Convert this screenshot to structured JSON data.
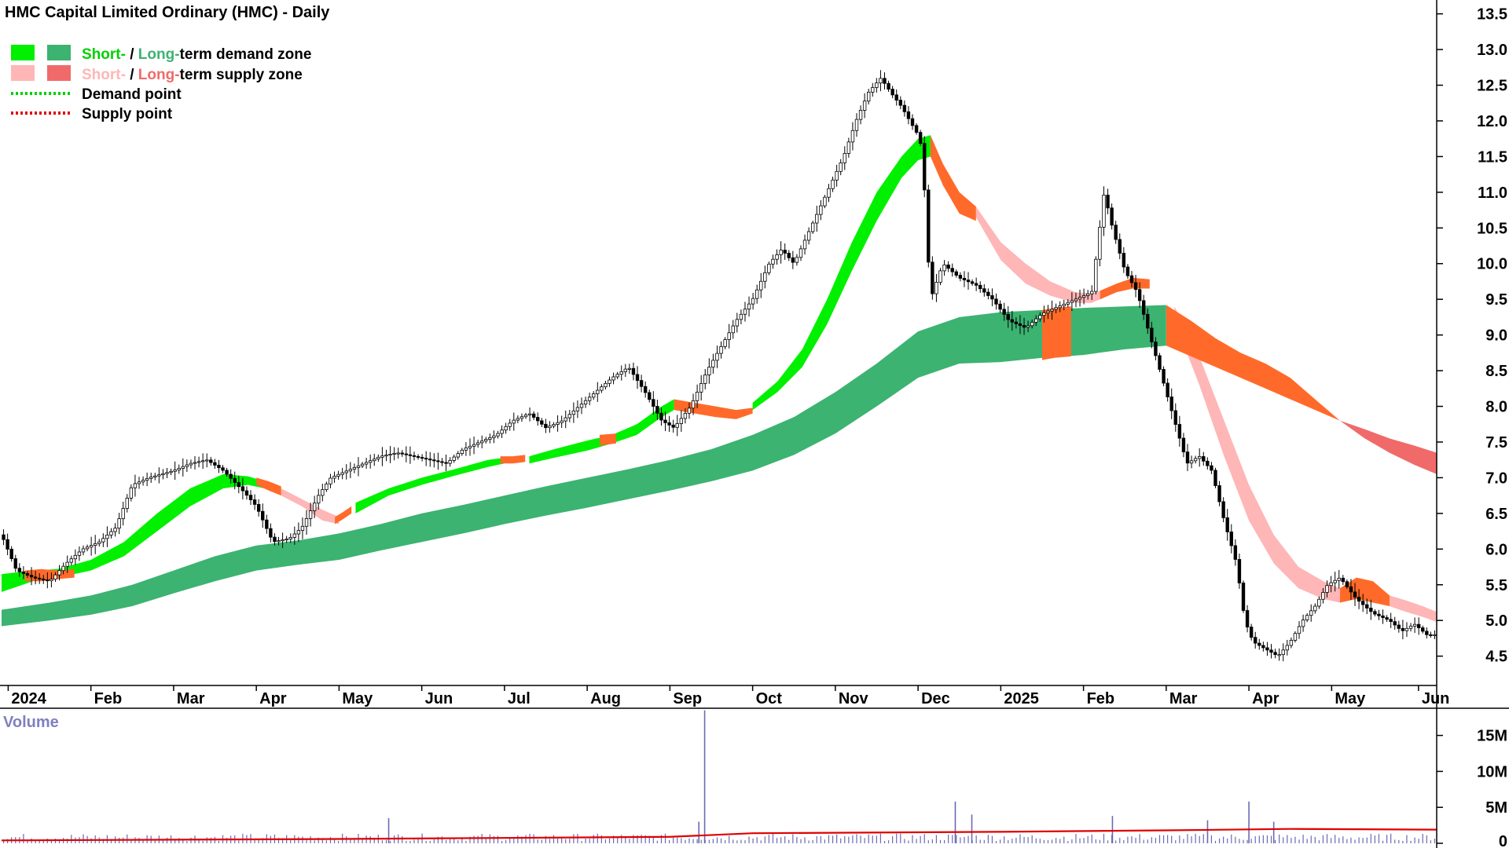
{
  "title": "HMC Capital Limited Ordinary (HMC) - Daily",
  "legend": {
    "demand_zone": {
      "short": "Short-",
      "sep": " / ",
      "long": "Long-",
      "rest": "term demand zone"
    },
    "supply_zone": {
      "short": "Short-",
      "sep": " / ",
      "long": "Long-",
      "rest": "term supply zone"
    },
    "demand_point": "Demand point",
    "supply_point": "Supply point"
  },
  "volume_label": "Volume",
  "colors": {
    "short_demand": "#00f000",
    "long_demand": "#3cb371",
    "short_supply": "#ffb6b6",
    "long_supply": "#f06a6a",
    "overlap": "#ff6a2a",
    "volume_bar": "#6a6ab4",
    "volume_ma": "#e00000",
    "demand_point": "#00d000",
    "supply_point": "#e00000"
  },
  "chart_data": {
    "type": "line",
    "y_axis": {
      "range": [
        4.1,
        13.65
      ],
      "ticks": [
        13.5,
        13.0,
        12.5,
        12.0,
        11.5,
        11.0,
        10.5,
        10.0,
        9.5,
        9.0,
        8.5,
        8.0,
        7.5,
        7.0,
        6.5,
        6.0,
        5.5,
        5.0,
        4.5
      ],
      "tick_labels": [
        "13.5",
        "13.0",
        "12.5",
        "12.0",
        "11.5",
        "11.0",
        "10.5",
        "10.0",
        "9.5",
        "9.0",
        "8.5",
        "8.0",
        "7.5",
        "7.0",
        "6.5",
        "6.0",
        "5.5",
        "5.0",
        "4.5"
      ]
    },
    "x_axis": {
      "labels": [
        "2024",
        "Feb",
        "Mar",
        "Apr",
        "May",
        "Jun",
        "Jul",
        "Aug",
        "Sep",
        "Oct",
        "Nov",
        "Dec",
        "2025",
        "Feb",
        "Mar",
        "Apr",
        "May",
        "Jun"
      ],
      "positions": [
        0,
        1,
        2,
        3,
        4,
        5,
        6,
        7,
        8,
        9,
        10,
        11,
        12,
        13,
        14,
        15,
        16,
        17.05
      ],
      "range": [
        -0.08,
        17.27
      ]
    },
    "price": {
      "x": [
        -0.08,
        0.1,
        0.3,
        0.5,
        0.7,
        0.9,
        1.1,
        1.3,
        1.5,
        1.7,
        1.85,
        2.0,
        2.2,
        2.4,
        2.6,
        2.85,
        3.0,
        3.2,
        3.4,
        3.55,
        3.75,
        3.9,
        4.1,
        4.3,
        4.5,
        4.7,
        4.9,
        5.1,
        5.3,
        5.5,
        5.7,
        5.9,
        6.1,
        6.3,
        6.5,
        6.7,
        6.9,
        7.1,
        7.3,
        7.5,
        7.7,
        7.9,
        8.05,
        8.25,
        8.45,
        8.6,
        8.8,
        9.0,
        9.2,
        9.35,
        9.5,
        9.7,
        9.9,
        10.1,
        10.25,
        10.4,
        10.55,
        10.7,
        10.8,
        10.9,
        11.0,
        11.05,
        11.15,
        11.3,
        11.5,
        11.7,
        11.9,
        12.1,
        12.3,
        12.5,
        12.7,
        12.9,
        13.1,
        13.25,
        13.35,
        13.5,
        13.65,
        13.8,
        13.95,
        14.1,
        14.25,
        14.4,
        14.55,
        14.7,
        14.85,
        14.95,
        15.05,
        15.2,
        15.35,
        15.5,
        15.65,
        15.8,
        15.95,
        16.1,
        16.3,
        16.5,
        16.7,
        16.85,
        17.0,
        17.15,
        17.27
      ],
      "close": [
        6.2,
        5.7,
        5.6,
        5.55,
        5.8,
        6.0,
        6.1,
        6.3,
        6.9,
        7.0,
        7.05,
        7.1,
        7.2,
        7.25,
        7.1,
        6.8,
        6.6,
        6.1,
        6.15,
        6.3,
        6.75,
        7.0,
        7.1,
        7.2,
        7.3,
        7.35,
        7.3,
        7.25,
        7.2,
        7.4,
        7.5,
        7.6,
        7.8,
        7.9,
        7.7,
        7.8,
        8.0,
        8.2,
        8.4,
        8.55,
        8.2,
        7.8,
        7.7,
        8.0,
        8.5,
        8.8,
        9.2,
        9.5,
        10.0,
        10.2,
        10.0,
        10.5,
        11.0,
        11.5,
        12.0,
        12.4,
        12.6,
        12.35,
        12.2,
        12.0,
        11.8,
        11.6,
        9.5,
        10.0,
        9.8,
        9.7,
        9.5,
        9.2,
        9.1,
        9.3,
        9.4,
        9.5,
        9.6,
        11.0,
        10.5,
        9.9,
        9.6,
        9.0,
        8.4,
        7.8,
        7.2,
        7.3,
        7.1,
        6.4,
        5.8,
        5.0,
        4.7,
        4.6,
        4.5,
        4.7,
        5.0,
        5.2,
        5.5,
        5.6,
        5.3,
        5.1,
        5.0,
        4.85,
        4.95,
        4.8,
        4.8
      ]
    },
    "short_demand_zone": {
      "segments": [
        {
          "x": [
            -0.08,
            0.3,
            0.6,
            1.0,
            1.4,
            1.8,
            2.2,
            2.6,
            2.9,
            3.1
          ],
          "upper": [
            5.65,
            5.7,
            5.72,
            5.85,
            6.1,
            6.5,
            6.85,
            7.05,
            7.02,
            6.95
          ],
          "lower": [
            5.4,
            5.55,
            5.6,
            5.7,
            5.9,
            6.25,
            6.6,
            6.85,
            6.9,
            6.85
          ]
        },
        {
          "x": [
            4.2,
            4.6,
            5.0,
            5.4,
            5.8,
            6.0
          ],
          "upper": [
            6.65,
            6.85,
            7.0,
            7.12,
            7.25,
            7.28
          ],
          "lower": [
            6.5,
            6.75,
            6.9,
            7.03,
            7.15,
            7.2
          ]
        },
        {
          "x": [
            6.3,
            6.6,
            7.0,
            7.3,
            7.6,
            7.9,
            8.05
          ],
          "upper": [
            7.3,
            7.4,
            7.52,
            7.6,
            7.75,
            8.0,
            8.1
          ],
          "lower": [
            7.2,
            7.28,
            7.38,
            7.48,
            7.6,
            7.85,
            7.95
          ]
        },
        {
          "x": [
            9.0,
            9.3,
            9.6,
            9.9,
            10.2,
            10.5,
            10.8,
            11.0,
            11.15
          ],
          "upper": [
            8.05,
            8.35,
            8.8,
            9.5,
            10.3,
            11.0,
            11.5,
            11.75,
            11.8
          ],
          "lower": [
            7.95,
            8.2,
            8.55,
            9.15,
            9.9,
            10.6,
            11.2,
            11.45,
            11.5
          ]
        }
      ]
    },
    "long_demand_zone": {
      "x": [
        -0.08,
        0.5,
        1.0,
        1.5,
        2.0,
        2.5,
        3.0,
        3.5,
        4.0,
        4.5,
        5.0,
        5.5,
        6.0,
        6.5,
        7.0,
        7.5,
        8.0,
        8.5,
        9.0,
        9.5,
        10.0,
        10.5,
        11.0,
        11.5,
        12.0,
        12.5,
        13.0,
        13.5,
        14.0
      ],
      "upper": [
        5.15,
        5.25,
        5.35,
        5.5,
        5.7,
        5.9,
        6.05,
        6.12,
        6.22,
        6.35,
        6.5,
        6.62,
        6.75,
        6.88,
        7.0,
        7.12,
        7.25,
        7.4,
        7.6,
        7.85,
        8.2,
        8.6,
        9.05,
        9.25,
        9.32,
        9.35,
        9.38,
        9.4,
        9.42
      ],
      "lower": [
        4.92,
        5.0,
        5.08,
        5.2,
        5.38,
        5.55,
        5.7,
        5.78,
        5.85,
        5.98,
        6.1,
        6.22,
        6.35,
        6.47,
        6.58,
        6.7,
        6.82,
        6.95,
        7.1,
        7.32,
        7.62,
        8.0,
        8.4,
        8.6,
        8.62,
        8.68,
        8.72,
        8.8,
        8.85
      ]
    },
    "short_supply_zone": {
      "segments": [
        {
          "x": [
            3.3,
            3.55,
            3.8,
            4.0
          ],
          "upper": [
            6.85,
            6.7,
            6.55,
            6.45
          ],
          "lower": [
            6.75,
            6.6,
            6.4,
            6.35
          ]
        },
        {
          "x": [
            11.7,
            12.0,
            12.3,
            12.6,
            12.9,
            13.1,
            13.2
          ],
          "upper": [
            10.8,
            10.3,
            10.0,
            9.75,
            9.6,
            9.58,
            9.62
          ],
          "lower": [
            10.65,
            10.05,
            9.72,
            9.55,
            9.45,
            9.45,
            9.5
          ]
        },
        {
          "x": [
            14.1,
            14.4,
            14.7,
            15.0,
            15.3,
            15.6,
            15.9,
            16.1
          ],
          "upper": [
            9.4,
            8.7,
            7.8,
            6.9,
            6.2,
            5.75,
            5.55,
            5.45
          ],
          "lower": [
            9.2,
            8.3,
            7.3,
            6.4,
            5.8,
            5.45,
            5.3,
            5.25
          ]
        },
        {
          "x": [
            16.7,
            16.9,
            17.1,
            17.27
          ],
          "upper": [
            5.35,
            5.28,
            5.2,
            5.12
          ],
          "lower": [
            5.2,
            5.12,
            5.05,
            4.98
          ]
        }
      ]
    },
    "long_supply_zone": {
      "x": [
        16.1,
        16.4,
        16.7,
        17.0,
        17.27
      ],
      "upper": [
        7.8,
        7.68,
        7.55,
        7.45,
        7.35
      ],
      "lower": [
        7.8,
        7.55,
        7.35,
        7.18,
        7.05
      ]
    },
    "overlap_zone": {
      "segments": [
        {
          "x": [
            0.2,
            0.4,
            0.6,
            0.8
          ],
          "upper": [
            5.7,
            5.72,
            5.7,
            5.72
          ],
          "lower": [
            5.55,
            5.55,
            5.58,
            5.6
          ]
        },
        {
          "x": [
            3.0,
            3.15,
            3.3
          ],
          "upper": [
            7.0,
            6.95,
            6.88
          ],
          "lower": [
            6.9,
            6.82,
            6.75
          ]
        },
        {
          "x": [
            3.95,
            4.05,
            4.15
          ],
          "upper": [
            6.45,
            6.52,
            6.6
          ],
          "lower": [
            6.35,
            6.42,
            6.5
          ]
        },
        {
          "x": [
            5.95,
            6.1,
            6.25
          ],
          "upper": [
            7.3,
            7.3,
            7.32
          ],
          "lower": [
            7.2,
            7.2,
            7.22
          ]
        },
        {
          "x": [
            7.15,
            7.35
          ],
          "upper": [
            7.6,
            7.62
          ],
          "lower": [
            7.45,
            7.48
          ]
        },
        {
          "x": [
            8.05,
            8.3,
            8.55,
            8.8,
            9.0
          ],
          "upper": [
            8.1,
            8.05,
            8.0,
            7.95,
            7.98
          ],
          "lower": [
            7.95,
            7.9,
            7.85,
            7.82,
            7.9
          ]
        },
        {
          "x": [
            11.15,
            11.3,
            11.5,
            11.7
          ],
          "upper": [
            11.8,
            11.4,
            11.0,
            10.8
          ],
          "lower": [
            11.5,
            11.1,
            10.7,
            10.6
          ]
        },
        {
          "x": [
            12.5,
            12.65,
            12.85
          ],
          "upper": [
            9.35,
            9.38,
            9.4
          ],
          "lower": [
            8.65,
            8.68,
            8.7
          ]
        },
        {
          "x": [
            13.2,
            13.4,
            13.6,
            13.8
          ],
          "upper": [
            9.62,
            9.72,
            9.8,
            9.78
          ],
          "lower": [
            9.5,
            9.6,
            9.65,
            9.65
          ]
        },
        {
          "x": [
            14.0,
            14.3,
            14.6,
            14.9,
            15.2,
            15.5,
            15.8,
            16.1
          ],
          "upper": [
            9.42,
            9.2,
            8.95,
            8.75,
            8.6,
            8.4,
            8.1,
            7.8
          ],
          "lower": [
            8.85,
            8.7,
            8.55,
            8.4,
            8.25,
            8.1,
            7.95,
            7.8
          ]
        },
        {
          "x": [
            16.1,
            16.3,
            16.5,
            16.7
          ],
          "upper": [
            5.45,
            5.6,
            5.55,
            5.35
          ],
          "lower": [
            5.25,
            5.3,
            5.25,
            5.2
          ]
        }
      ]
    },
    "volume": {
      "y_axis": {
        "range": [
          0,
          19000000
        ],
        "ticks": [
          15000000,
          10000000,
          5000000,
          0
        ],
        "tick_labels": [
          "15M",
          "10M",
          "5M",
          "0"
        ]
      },
      "spikes": [
        {
          "x": 4.6,
          "value": 3500000
        },
        {
          "x": 8.42,
          "value": 18500000
        },
        {
          "x": 8.35,
          "value": 3000000
        },
        {
          "x": 11.45,
          "value": 5800000
        },
        {
          "x": 11.65,
          "value": 4000000
        },
        {
          "x": 13.35,
          "value": 3800000
        },
        {
          "x": 15.0,
          "value": 5800000
        },
        {
          "x": 14.5,
          "value": 3200000
        },
        {
          "x": 15.3,
          "value": 3000000
        }
      ],
      "base_level": 800000,
      "ma": {
        "x": [
          -0.08,
          4.0,
          8.0,
          9.0,
          12.0,
          14.0,
          15.5,
          17.27
        ],
        "values": [
          400000,
          600000,
          900000,
          1400000,
          1600000,
          1800000,
          2000000,
          1900000
        ]
      }
    }
  }
}
